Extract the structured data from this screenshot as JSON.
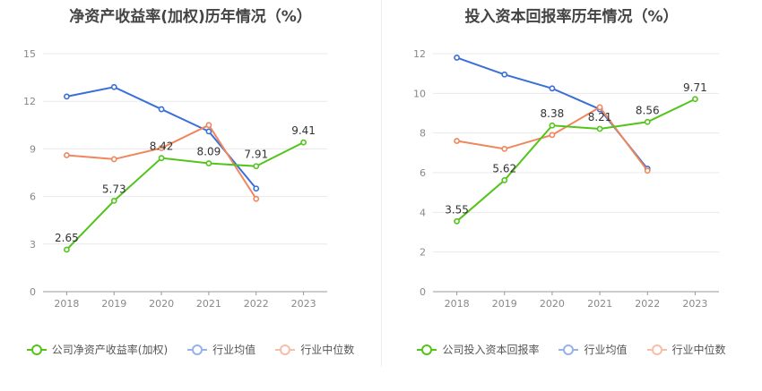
{
  "chart_data": [
    {
      "type": "line",
      "title": "净资产收益率(加权)历年情况（%）",
      "x": [
        "2018",
        "2019",
        "2020",
        "2021",
        "2022",
        "2023"
      ],
      "ylim": [
        0,
        15
      ],
      "yticks": [
        "0",
        "3",
        "6",
        "9",
        "12",
        "15"
      ],
      "grid": true,
      "legend": "bottom-center",
      "series": [
        {
          "name": "公司净资产收益率(加权)",
          "color": "#52c41a",
          "values": [
            2.65,
            5.73,
            8.42,
            8.09,
            7.91,
            9.41
          ],
          "labels": [
            "2.65",
            "5.73",
            "8.42",
            "8.09",
            "7.91",
            "9.41"
          ],
          "label_mode": "above"
        },
        {
          "name": "行业均值",
          "color": "#3a6fd8",
          "values": [
            12.3,
            12.9,
            11.5,
            10.1,
            6.5,
            null
          ]
        },
        {
          "name": "行业中位数",
          "color": "#f0865c",
          "values": [
            8.6,
            8.35,
            9.05,
            10.5,
            5.85,
            null
          ]
        }
      ]
    },
    {
      "type": "line",
      "title": "投入资本回报率历年情况（%）",
      "x": [
        "2018",
        "2019",
        "2020",
        "2021",
        "2022",
        "2023"
      ],
      "ylim": [
        0,
        12
      ],
      "yticks": [
        "0",
        "2",
        "4",
        "6",
        "8",
        "10",
        "12"
      ],
      "grid": true,
      "legend": "bottom-center",
      "series": [
        {
          "name": "公司投入资本回报率",
          "color": "#52c41a",
          "values": [
            3.55,
            5.62,
            8.38,
            8.21,
            8.56,
            9.71
          ],
          "labels": [
            "3.55",
            "5.62",
            "8.38",
            "8.21",
            "8.56",
            "9.71"
          ],
          "label_mode": "above"
        },
        {
          "name": "行业均值",
          "color": "#3a6fd8",
          "values": [
            11.8,
            10.95,
            10.25,
            9.2,
            6.2,
            null
          ]
        },
        {
          "name": "行业中位数",
          "color": "#f0865c",
          "values": [
            7.6,
            7.2,
            7.9,
            9.3,
            6.1,
            null
          ]
        }
      ]
    }
  ]
}
